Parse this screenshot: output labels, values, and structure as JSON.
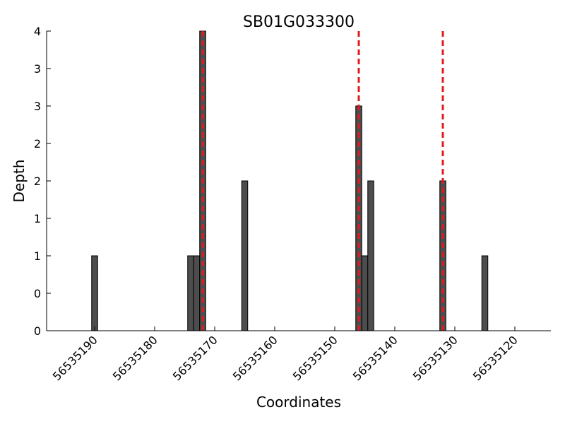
{
  "chart_data": {
    "type": "bar",
    "title": "SB01G033300",
    "xlabel": "Coordinates",
    "ylabel": "Depth",
    "x_axis": {
      "reversed": true,
      "range": [
        56535198,
        56535114
      ],
      "ticks": [
        56535190,
        56535180,
        56535170,
        56535160,
        56535150,
        56535140,
        56535130,
        56535120
      ],
      "tick_labels": [
        "56535190",
        "56535180",
        "56535170",
        "56535160",
        "56535150",
        "56535140",
        "56535130",
        "56535120"
      ]
    },
    "y_axis": {
      "range": [
        0,
        4
      ],
      "ticks": [
        0,
        0.5,
        1,
        1.5,
        2,
        2.5,
        3,
        3.5,
        4
      ],
      "tick_labels": [
        "0",
        "0",
        "1",
        "1",
        "2",
        "2",
        "3",
        "3",
        "4"
      ]
    },
    "bars": [
      {
        "x": 56535190,
        "y": 1
      },
      {
        "x": 56535174,
        "y": 1
      },
      {
        "x": 56535173,
        "y": 1
      },
      {
        "x": 56535172,
        "y": 4
      },
      {
        "x": 56535165,
        "y": 2
      },
      {
        "x": 56535146,
        "y": 3
      },
      {
        "x": 56535145,
        "y": 1
      },
      {
        "x": 56535144,
        "y": 2
      },
      {
        "x": 56535132,
        "y": 2
      },
      {
        "x": 56535125,
        "y": 1
      }
    ],
    "bar_width": 1,
    "markers": [
      56535172,
      56535146,
      56535132
    ],
    "colors": {
      "bar_fill": "#4d4d4d",
      "bar_edge": "#000000",
      "marker": "#e31a1c"
    },
    "grid": false,
    "legend": "none"
  }
}
